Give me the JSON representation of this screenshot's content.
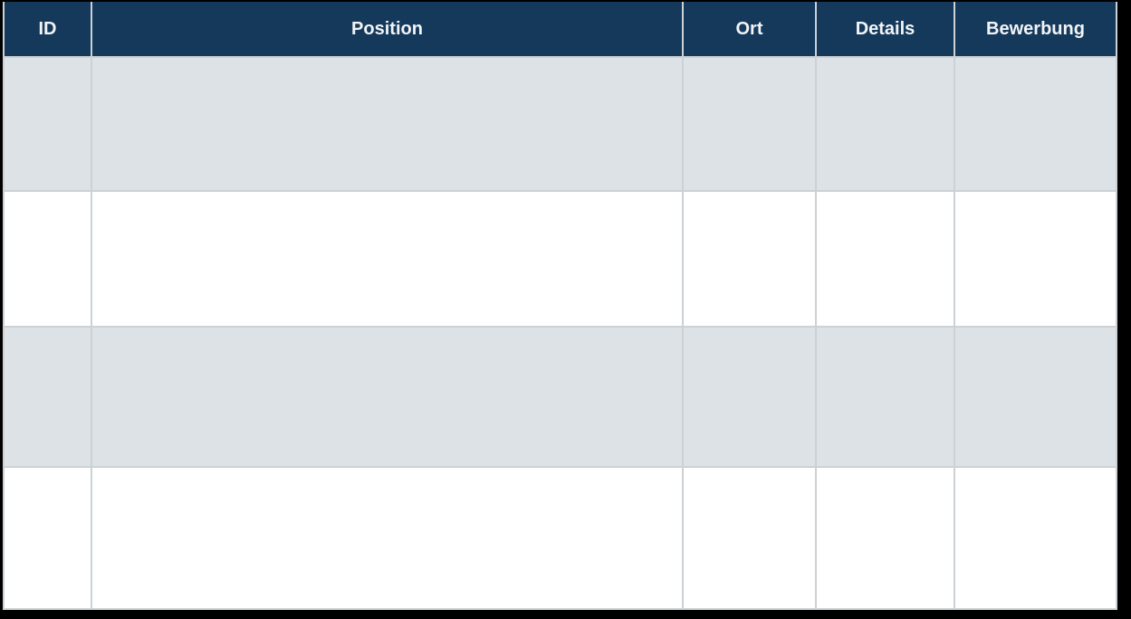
{
  "table": {
    "columns": [
      {
        "key": "id",
        "label": "ID"
      },
      {
        "key": "position",
        "label": "Position"
      },
      {
        "key": "ort",
        "label": "Ort"
      },
      {
        "key": "details",
        "label": "Details"
      },
      {
        "key": "bewerbung",
        "label": "Bewerbung"
      }
    ],
    "rows": [
      {
        "id": "",
        "position": "",
        "ort": "",
        "details": "",
        "bewerbung": ""
      },
      {
        "id": "",
        "position": "",
        "ort": "",
        "details": "",
        "bewerbung": ""
      },
      {
        "id": "",
        "position": "",
        "ort": "",
        "details": "",
        "bewerbung": ""
      },
      {
        "id": "",
        "position": "",
        "ort": "",
        "details": "",
        "bewerbung": ""
      }
    ]
  },
  "colors": {
    "header_bg": "#14395B",
    "header_text": "#F2F4F6",
    "stripe_bg": "#DDE2E6",
    "row_bg": "#FFFFFF",
    "border": "#CBD1D5",
    "canvas_bg": "#000000"
  }
}
